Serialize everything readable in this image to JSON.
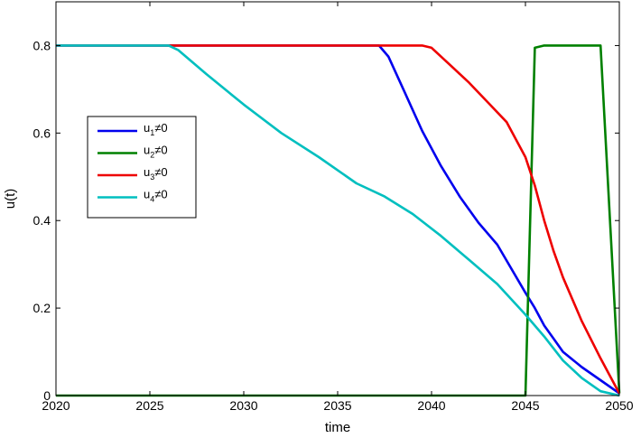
{
  "chart_data": {
    "type": "line",
    "xlabel": "time",
    "ylabel": "u(t)",
    "xlim": [
      2020,
      2050
    ],
    "ylim": [
      0,
      0.9
    ],
    "xticks": [
      "2020",
      "2025",
      "2030",
      "2035",
      "2040",
      "2045",
      "2050"
    ],
    "yticks": [
      "0",
      "0.2",
      "0.4",
      "0.6",
      "0.8"
    ],
    "grid": false,
    "legend_placement": "center-left",
    "series": [
      {
        "name": "u",
        "sub": "1",
        "cond": "≠0",
        "color": "#0000ee",
        "x": [
          2020,
          2037.2,
          2037.7,
          2038.5,
          2039.5,
          2040.5,
          2041.5,
          2042.5,
          2043.5,
          2045,
          2045.5,
          2046,
          2046.5,
          2047,
          2048,
          2049,
          2050
        ],
        "y": [
          0.8,
          0.8,
          0.775,
          0.7,
          0.605,
          0.525,
          0.455,
          0.395,
          0.345,
          0.235,
          0.2,
          0.16,
          0.13,
          0.1,
          0.065,
          0.035,
          0.005
        ]
      },
      {
        "name": "u",
        "sub": "2",
        "cond": "≠0",
        "color": "#008000",
        "x": [
          2020,
          2045,
          2045.5,
          2046,
          2049,
          2050
        ],
        "y": [
          0,
          0,
          0.795,
          0.8,
          0.8,
          0.005
        ]
      },
      {
        "name": "u",
        "sub": "3",
        "cond": "≠0",
        "color": "#ee0000",
        "x": [
          2020,
          2039.5,
          2040,
          2041,
          2042,
          2043,
          2044,
          2045,
          2045.5,
          2046,
          2046.5,
          2047,
          2048,
          2049,
          2050
        ],
        "y": [
          0.8,
          0.8,
          0.795,
          0.755,
          0.715,
          0.67,
          0.625,
          0.545,
          0.48,
          0.4,
          0.33,
          0.27,
          0.17,
          0.085,
          0.005
        ]
      },
      {
        "name": "u",
        "sub": "4",
        "cond": "≠0",
        "color": "#00bfbf",
        "x": [
          2020,
          2026,
          2026.5,
          2028,
          2030,
          2032,
          2034,
          2036,
          2037.5,
          2039,
          2040.5,
          2042,
          2043.5,
          2045,
          2046,
          2047,
          2048,
          2049,
          2050
        ],
        "y": [
          0.8,
          0.8,
          0.79,
          0.735,
          0.665,
          0.6,
          0.545,
          0.485,
          0.455,
          0.415,
          0.365,
          0.31,
          0.255,
          0.185,
          0.135,
          0.08,
          0.04,
          0.01,
          0
        ]
      }
    ]
  }
}
